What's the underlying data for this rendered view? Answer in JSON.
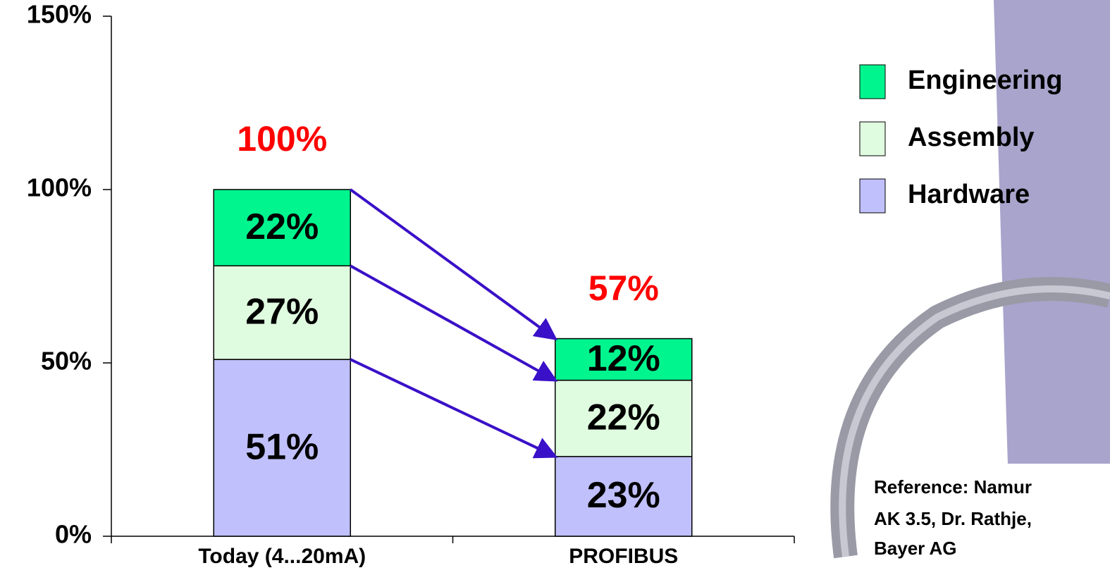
{
  "chart_data": {
    "type": "stacked_bar",
    "categories": [
      "Today (4...20mA)",
      "PROFIBUS"
    ],
    "series": [
      {
        "name": "Hardware",
        "color": "#c0c0fc",
        "values": [
          51,
          23
        ],
        "value_labels": [
          "51%",
          "23%"
        ]
      },
      {
        "name": "Assembly",
        "color": "#e0fce0",
        "values": [
          27,
          22
        ],
        "value_labels": [
          "27%",
          "22%"
        ]
      },
      {
        "name": "Engineering",
        "color": "#00f58e",
        "values": [
          22,
          12
        ],
        "value_labels": [
          "22%",
          "12%"
        ]
      }
    ],
    "totals": {
      "values": [
        100,
        57
      ],
      "value_labels": [
        "100%",
        "57%"
      ],
      "color": "#ff0000"
    },
    "ylim": [
      0,
      150
    ],
    "yticks": [
      {
        "value": 0,
        "label": "0%"
      },
      {
        "value": 50,
        "label": "50%"
      },
      {
        "value": 100,
        "label": "100%"
      },
      {
        "value": 150,
        "label": "150%"
      }
    ],
    "arrow_color": "#3a10c8",
    "annotation": [
      "Reference: Namur",
      "AK 3.5, Dr. Rathje,",
      "Bayer AG"
    ]
  }
}
